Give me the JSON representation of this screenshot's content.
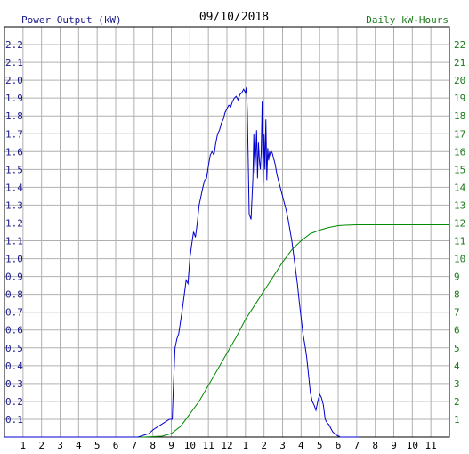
{
  "chart_data": {
    "type": "line",
    "title": "09/10/2018",
    "left_axis_label": "Power Output (kW)",
    "right_axis_label": "Daily kW-Hours",
    "x_tick_labels": [
      "1",
      "2",
      "3",
      "4",
      "5",
      "6",
      "7",
      "8",
      "9",
      "10",
      "11",
      "12",
      "1",
      "2",
      "3",
      "4",
      "5",
      "6",
      "7",
      "8",
      "9",
      "10",
      "11"
    ],
    "xlim": [
      0,
      24
    ],
    "ylim_left": [
      0,
      2.3
    ],
    "ylim_right": [
      0,
      23
    ],
    "y_left_ticks": [
      "0.1",
      "0.2",
      "0.3",
      "0.4",
      "0.5",
      "0.6",
      "0.7",
      "0.8",
      "0.9",
      "1.0",
      "1.1",
      "1.2",
      "1.3",
      "1.4",
      "1.5",
      "1.6",
      "1.7",
      "1.8",
      "1.9",
      "2.0",
      "2.1",
      "2.2"
    ],
    "y_right_ticks": [
      "1",
      "2",
      "3",
      "4",
      "5",
      "6",
      "7",
      "8",
      "9",
      "10",
      "11",
      "12",
      "13",
      "14",
      "15",
      "16",
      "17",
      "18",
      "19",
      "20",
      "21",
      "22"
    ],
    "grid": true,
    "colors": {
      "left_axis_text": "#1a1a8c",
      "right_axis_text": "#1a7a1a",
      "power_line": "#0000cc",
      "energy_line": "#008800",
      "grid": "#b0b0b0"
    },
    "series": [
      {
        "axis": "left",
        "x": [
          0,
          7.2,
          7.5,
          7.8,
          8.0,
          8.3,
          8.6,
          8.9,
          9.05,
          9.1,
          9.2,
          9.3,
          9.4,
          9.5,
          9.6,
          9.7,
          9.8,
          9.9,
          10.0,
          10.1,
          10.2,
          10.3,
          10.4,
          10.5,
          10.6,
          10.7,
          10.8,
          10.9,
          11.0,
          11.1,
          11.2,
          11.3,
          11.4,
          11.5,
          11.6,
          11.7,
          11.8,
          11.9,
          12.0,
          12.1,
          12.2,
          12.3,
          12.4,
          12.5,
          12.6,
          12.7,
          12.8,
          12.9,
          13.0,
          13.05,
          13.1,
          13.2,
          13.3,
          13.4,
          13.45,
          13.5,
          13.55,
          13.6,
          13.65,
          13.7,
          13.75,
          13.8,
          13.85,
          13.9,
          13.95,
          14.0,
          14.05,
          14.1,
          14.15,
          14.2,
          14.25,
          14.3,
          14.35,
          14.4,
          14.45,
          14.5,
          14.55,
          14.6,
          14.65,
          14.7,
          14.75,
          14.8,
          14.85,
          14.9,
          14.95,
          15.0,
          15.1,
          15.2,
          15.3,
          15.4,
          15.5,
          15.6,
          15.7,
          15.8,
          15.9,
          16.0,
          16.1,
          16.2,
          16.3,
          16.4,
          16.5,
          16.6,
          16.7,
          16.8,
          16.9,
          17.0,
          17.1,
          17.2,
          17.3,
          17.4,
          17.5,
          17.6,
          17.7,
          17.8,
          17.85,
          17.9,
          17.95,
          18.0,
          18.05,
          18.1,
          18.15,
          18.2,
          18.3,
          18.4,
          18.5,
          18.6,
          18.7,
          18.8,
          18.9,
          19.0,
          19.1
        ],
        "y": [
          0,
          0,
          0.01,
          0.02,
          0.04,
          0.06,
          0.08,
          0.1,
          0.1,
          0.25,
          0.5,
          0.55,
          0.58,
          0.65,
          0.72,
          0.8,
          0.88,
          0.86,
          1.0,
          1.08,
          1.15,
          1.12,
          1.2,
          1.3,
          1.35,
          1.4,
          1.44,
          1.45,
          1.52,
          1.58,
          1.6,
          1.58,
          1.65,
          1.7,
          1.72,
          1.76,
          1.78,
          1.82,
          1.84,
          1.86,
          1.85,
          1.88,
          1.9,
          1.91,
          1.89,
          1.92,
          1.93,
          1.95,
          1.93,
          1.96,
          1.82,
          1.25,
          1.22,
          1.45,
          1.7,
          1.48,
          1.58,
          1.72,
          1.45,
          1.65,
          1.55,
          1.5,
          1.6,
          1.88,
          1.42,
          1.7,
          1.5,
          1.78,
          1.44,
          1.62,
          1.55,
          1.6,
          1.58,
          1.6,
          1.59,
          1.57,
          1.55,
          1.53,
          1.5,
          1.47,
          1.45,
          1.43,
          1.41,
          1.39,
          1.37,
          1.35,
          1.31,
          1.27,
          1.22,
          1.16,
          1.1,
          1.02,
          0.94,
          0.86,
          0.76,
          0.67,
          0.58,
          0.52,
          0.45,
          0.35,
          0.25,
          0.2,
          0.18,
          0.15,
          0.2,
          0.24,
          0.22,
          0.18,
          0.1,
          0.08,
          0.07,
          0.05,
          0.03,
          0.02,
          0.015,
          0.01,
          0.01,
          0.005,
          0.005,
          0,
          0,
          0,
          0,
          0,
          0,
          0,
          0,
          0,
          0,
          0,
          0
        ],
        "clip_end": 24
      },
      {
        "axis": "right",
        "x": [
          0,
          7.5,
          8.5,
          9.0,
          9.5,
          10.0,
          10.5,
          11.0,
          11.5,
          12.0,
          12.5,
          13.0,
          13.5,
          14.0,
          14.5,
          15.0,
          15.5,
          16.0,
          16.5,
          17.0,
          17.5,
          18.0,
          18.5,
          19.0,
          19.5,
          20.0,
          21.0,
          22.0,
          23.0,
          24.0
        ],
        "y": [
          0,
          0,
          0.05,
          0.2,
          0.6,
          1.3,
          2.0,
          2.9,
          3.8,
          4.7,
          5.6,
          6.6,
          7.4,
          8.2,
          9.0,
          9.8,
          10.5,
          11.0,
          11.4,
          11.6,
          11.75,
          11.85,
          11.88,
          11.9,
          11.9,
          11.9,
          11.9,
          11.9,
          11.9,
          11.9
        ]
      }
    ]
  }
}
